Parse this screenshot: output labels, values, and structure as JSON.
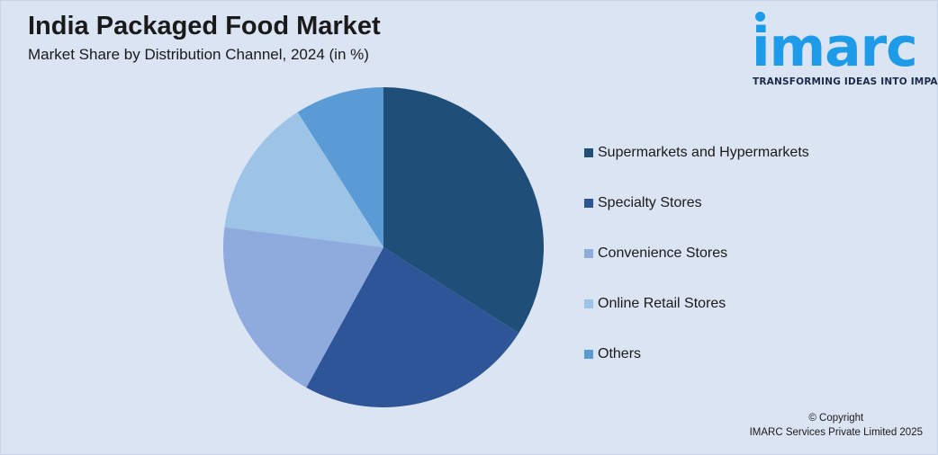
{
  "header": {
    "title": "India Packaged Food Market",
    "subtitle": "Market Share by Distribution Channel, 2024 (in %)"
  },
  "logo": {
    "word": "imarc",
    "tagline": "TRANSFORMING IDEAS INTO IMPACT",
    "color": "#1e9be8"
  },
  "chart_data": {
    "type": "pie",
    "title": "India Packaged Food Market",
    "subtitle": "Market Share by Distribution Channel, 2024 (in %)",
    "legend_position": "right",
    "categories": [
      "Supermarkets and Hypermarkets",
      "Specialty Stores",
      "Convenience Stores",
      "Online Retail Stores",
      "Others"
    ],
    "values": [
      34,
      24,
      19,
      14,
      9
    ],
    "colors": [
      "#1f4e79",
      "#2e5597",
      "#8faadc",
      "#9dc3e6",
      "#5b9bd5"
    ]
  },
  "footer": {
    "copyright_line1": "© Copyright",
    "copyright_line2": "IMARC Services Private Limited 2025"
  }
}
